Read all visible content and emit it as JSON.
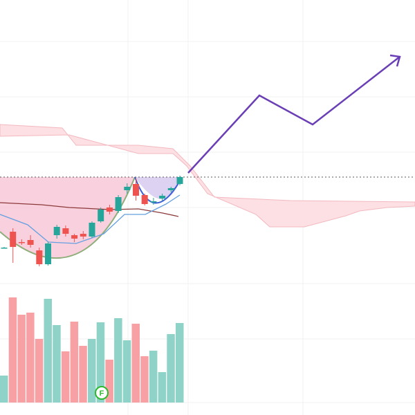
{
  "chart_data": {
    "type": "candlestick",
    "ylim": [
      0,
      600
    ],
    "candles": {
      "open": [
        242,
        265,
        250,
        253,
        238,
        218,
        260,
        270,
        260,
        262,
        258,
        280,
        300,
        295,
        325,
        334,
        318,
        309,
        313,
        325,
        334
      ],
      "high": [
        243,
        270,
        254,
        260,
        242,
        250,
        275,
        274,
        262,
        266,
        280,
        300,
        304,
        318,
        335,
        342,
        320,
        314,
        320,
        330,
        346
      ],
      "low": [
        241,
        220,
        246,
        242,
        215,
        216,
        255,
        258,
        250,
        254,
        256,
        278,
        290,
        292,
        320,
        310,
        303,
        304,
        310,
        322,
        332
      ],
      "close": [
        242,
        243,
        249,
        246,
        218,
        248,
        272,
        262,
        255,
        258,
        278,
        297,
        294,
        315,
        330,
        317,
        305,
        309,
        317,
        328,
        344
      ]
    },
    "up_color": "#26a69a",
    "down_color": "#ef5350",
    "volume": {
      "values": [
        39,
        152,
        127,
        130,
        92,
        150,
        112,
        74,
        117,
        82,
        92,
        116,
        62,
        122,
        90,
        114,
        67,
        75,
        44,
        99,
        115
      ],
      "ylim": [
        0,
        582
      ],
      "up_color": "#8fd3c8",
      "down_color": "#f7a1a5"
    },
    "marker": "F"
  }
}
